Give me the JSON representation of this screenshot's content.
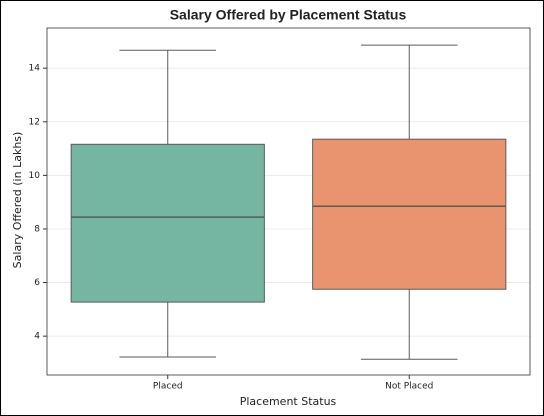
{
  "chart_data": {
    "type": "box",
    "title": "Salary Offered by Placement Status",
    "xlabel": "Placement Status",
    "ylabel": "Salary Offered (in Lakhs)",
    "categories": [
      "Placed",
      "Not Placed"
    ],
    "colors": [
      "#75b6a3",
      "#e9946f"
    ],
    "boxes": [
      {
        "min": 3.22,
        "q1": 5.27,
        "median": 8.44,
        "q3": 11.16,
        "max": 14.67
      },
      {
        "min": 3.14,
        "q1": 5.75,
        "median": 8.85,
        "q3": 11.35,
        "max": 14.86
      }
    ],
    "ylim": [
      2.55,
      15.5
    ],
    "yticks": [
      4,
      6,
      8,
      10,
      12,
      14
    ],
    "grid": true
  }
}
